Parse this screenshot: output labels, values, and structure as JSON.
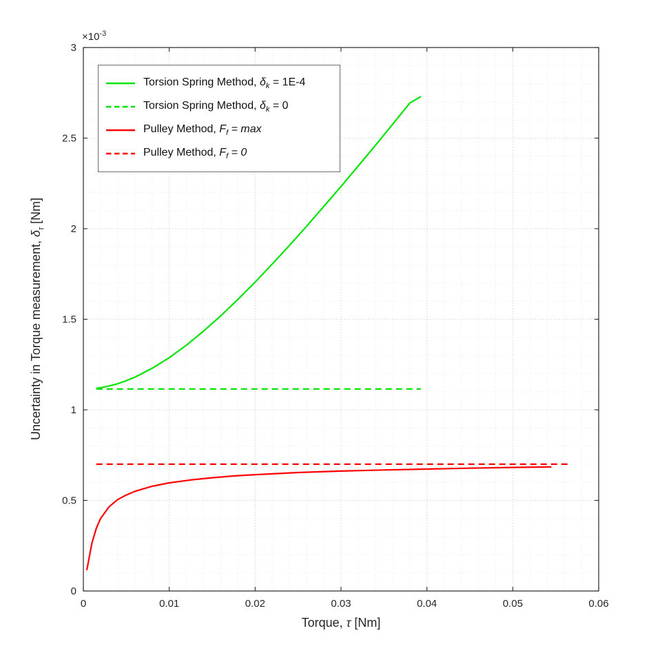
{
  "figure": {
    "bg": "#ffffff",
    "axis_color": "#262626",
    "grid_color": "#d4d4d4",
    "minor_grid_color": "#e9e9e9"
  },
  "chart_data": {
    "type": "line",
    "title": "",
    "xlabel_text": "Torque, τ [Nm]",
    "xlabel_parts": [
      {
        "t": "Torque, "
      },
      {
        "t": "τ",
        "i": true
      },
      {
        "t": " [Nm]"
      }
    ],
    "ylabel_text": "Uncertainty in Torque measurement, δτ [Nm]",
    "ylabel_parts": [
      {
        "t": "Uncertainty in Torque measurement, "
      },
      {
        "t": "δ",
        "i": true
      },
      {
        "t": "τ",
        "i": true,
        "sub": true
      },
      {
        "t": " [Nm]"
      }
    ],
    "y_exponent": {
      "base": "×10",
      "exp": "-3"
    },
    "y_unit_note": "y values are in units of 1e-3 Nm as shown by the ×10^-3 axis multiplier",
    "xlim": [
      0,
      0.06
    ],
    "ylim": [
      0,
      3
    ],
    "xticks": [
      0,
      0.01,
      0.02,
      0.03,
      0.04,
      0.05,
      0.06
    ],
    "xtick_labels": [
      "0",
      "0.01",
      "0.02",
      "0.03",
      "0.04",
      "0.05",
      "0.06"
    ],
    "yticks": [
      0,
      0.5,
      1,
      1.5,
      2,
      2.5,
      3
    ],
    "ytick_labels": [
      "0",
      "0.5",
      "1",
      "1.5",
      "2",
      "2.5",
      "3"
    ],
    "x_minor_step": 0.002,
    "y_minor_step": 0.1,
    "grid": "on",
    "minor_grid": "on",
    "legend_position": "top-left",
    "series": [
      {
        "name": "Torsion Spring Method, δk = 1E-4",
        "label_parts": [
          {
            "t": "Torsion Spring Method, "
          },
          {
            "t": "δ",
            "i": true
          },
          {
            "t": "k",
            "i": true,
            "sub": true
          },
          {
            "t": " = 1E-4"
          }
        ],
        "color": "#00e400",
        "style": "solid",
        "width": 2.2,
        "x": [
          0.0015,
          0.002,
          0.003,
          0.004,
          0.005,
          0.006,
          0.008,
          0.01,
          0.012,
          0.014,
          0.016,
          0.018,
          0.02,
          0.022,
          0.024,
          0.026,
          0.028,
          0.03,
          0.032,
          0.034,
          0.036,
          0.038,
          0.0393
        ],
        "y": [
          1.119,
          1.122,
          1.132,
          1.144,
          1.161,
          1.18,
          1.229,
          1.288,
          1.357,
          1.435,
          1.519,
          1.61,
          1.705,
          1.805,
          1.908,
          2.014,
          2.123,
          2.233,
          2.346,
          2.46,
          2.576,
          2.693,
          2.73
        ]
      },
      {
        "name": "Torsion Spring Method, δk = 0",
        "label_parts": [
          {
            "t": "Torsion Spring Method, "
          },
          {
            "t": "δ",
            "i": true
          },
          {
            "t": "k",
            "i": true,
            "sub": true
          },
          {
            "t": " = 0"
          }
        ],
        "color": "#00e400",
        "style": "dashed",
        "width": 2.2,
        "x": [
          0.0015,
          0.0393
        ],
        "y": [
          1.115,
          1.115
        ]
      },
      {
        "name": "Pulley Method, Ff = max",
        "label_parts": [
          {
            "t": "Pulley Method, "
          },
          {
            "t": "F",
            "i": true
          },
          {
            "t": "f",
            "i": true,
            "sub": true
          },
          {
            "t": " = max",
            "i": true
          }
        ],
        "color": "#ff0000",
        "style": "solid",
        "width": 2.2,
        "x": [
          0.0004,
          0.0006,
          0.001,
          0.0015,
          0.002,
          0.003,
          0.004,
          0.005,
          0.006,
          0.008,
          0.01,
          0.0125,
          0.015,
          0.0175,
          0.02,
          0.025,
          0.03,
          0.035,
          0.04,
          0.045,
          0.05,
          0.0545
        ],
        "y": [
          0.115,
          0.165,
          0.265,
          0.345,
          0.4,
          0.465,
          0.505,
          0.53,
          0.55,
          0.578,
          0.597,
          0.613,
          0.625,
          0.635,
          0.642,
          0.654,
          0.662,
          0.668,
          0.673,
          0.678,
          0.682,
          0.685
        ]
      },
      {
        "name": "Pulley Method, Ff = 0",
        "label_parts": [
          {
            "t": "Pulley Method, "
          },
          {
            "t": "F",
            "i": true
          },
          {
            "t": "f",
            "i": true,
            "sub": true
          },
          {
            "t": " = 0",
            "i": true
          }
        ],
        "color": "#ff0000",
        "style": "dashed",
        "width": 2.2,
        "x": [
          0.0015,
          0.0565
        ],
        "y": [
          0.7,
          0.7
        ]
      }
    ]
  }
}
